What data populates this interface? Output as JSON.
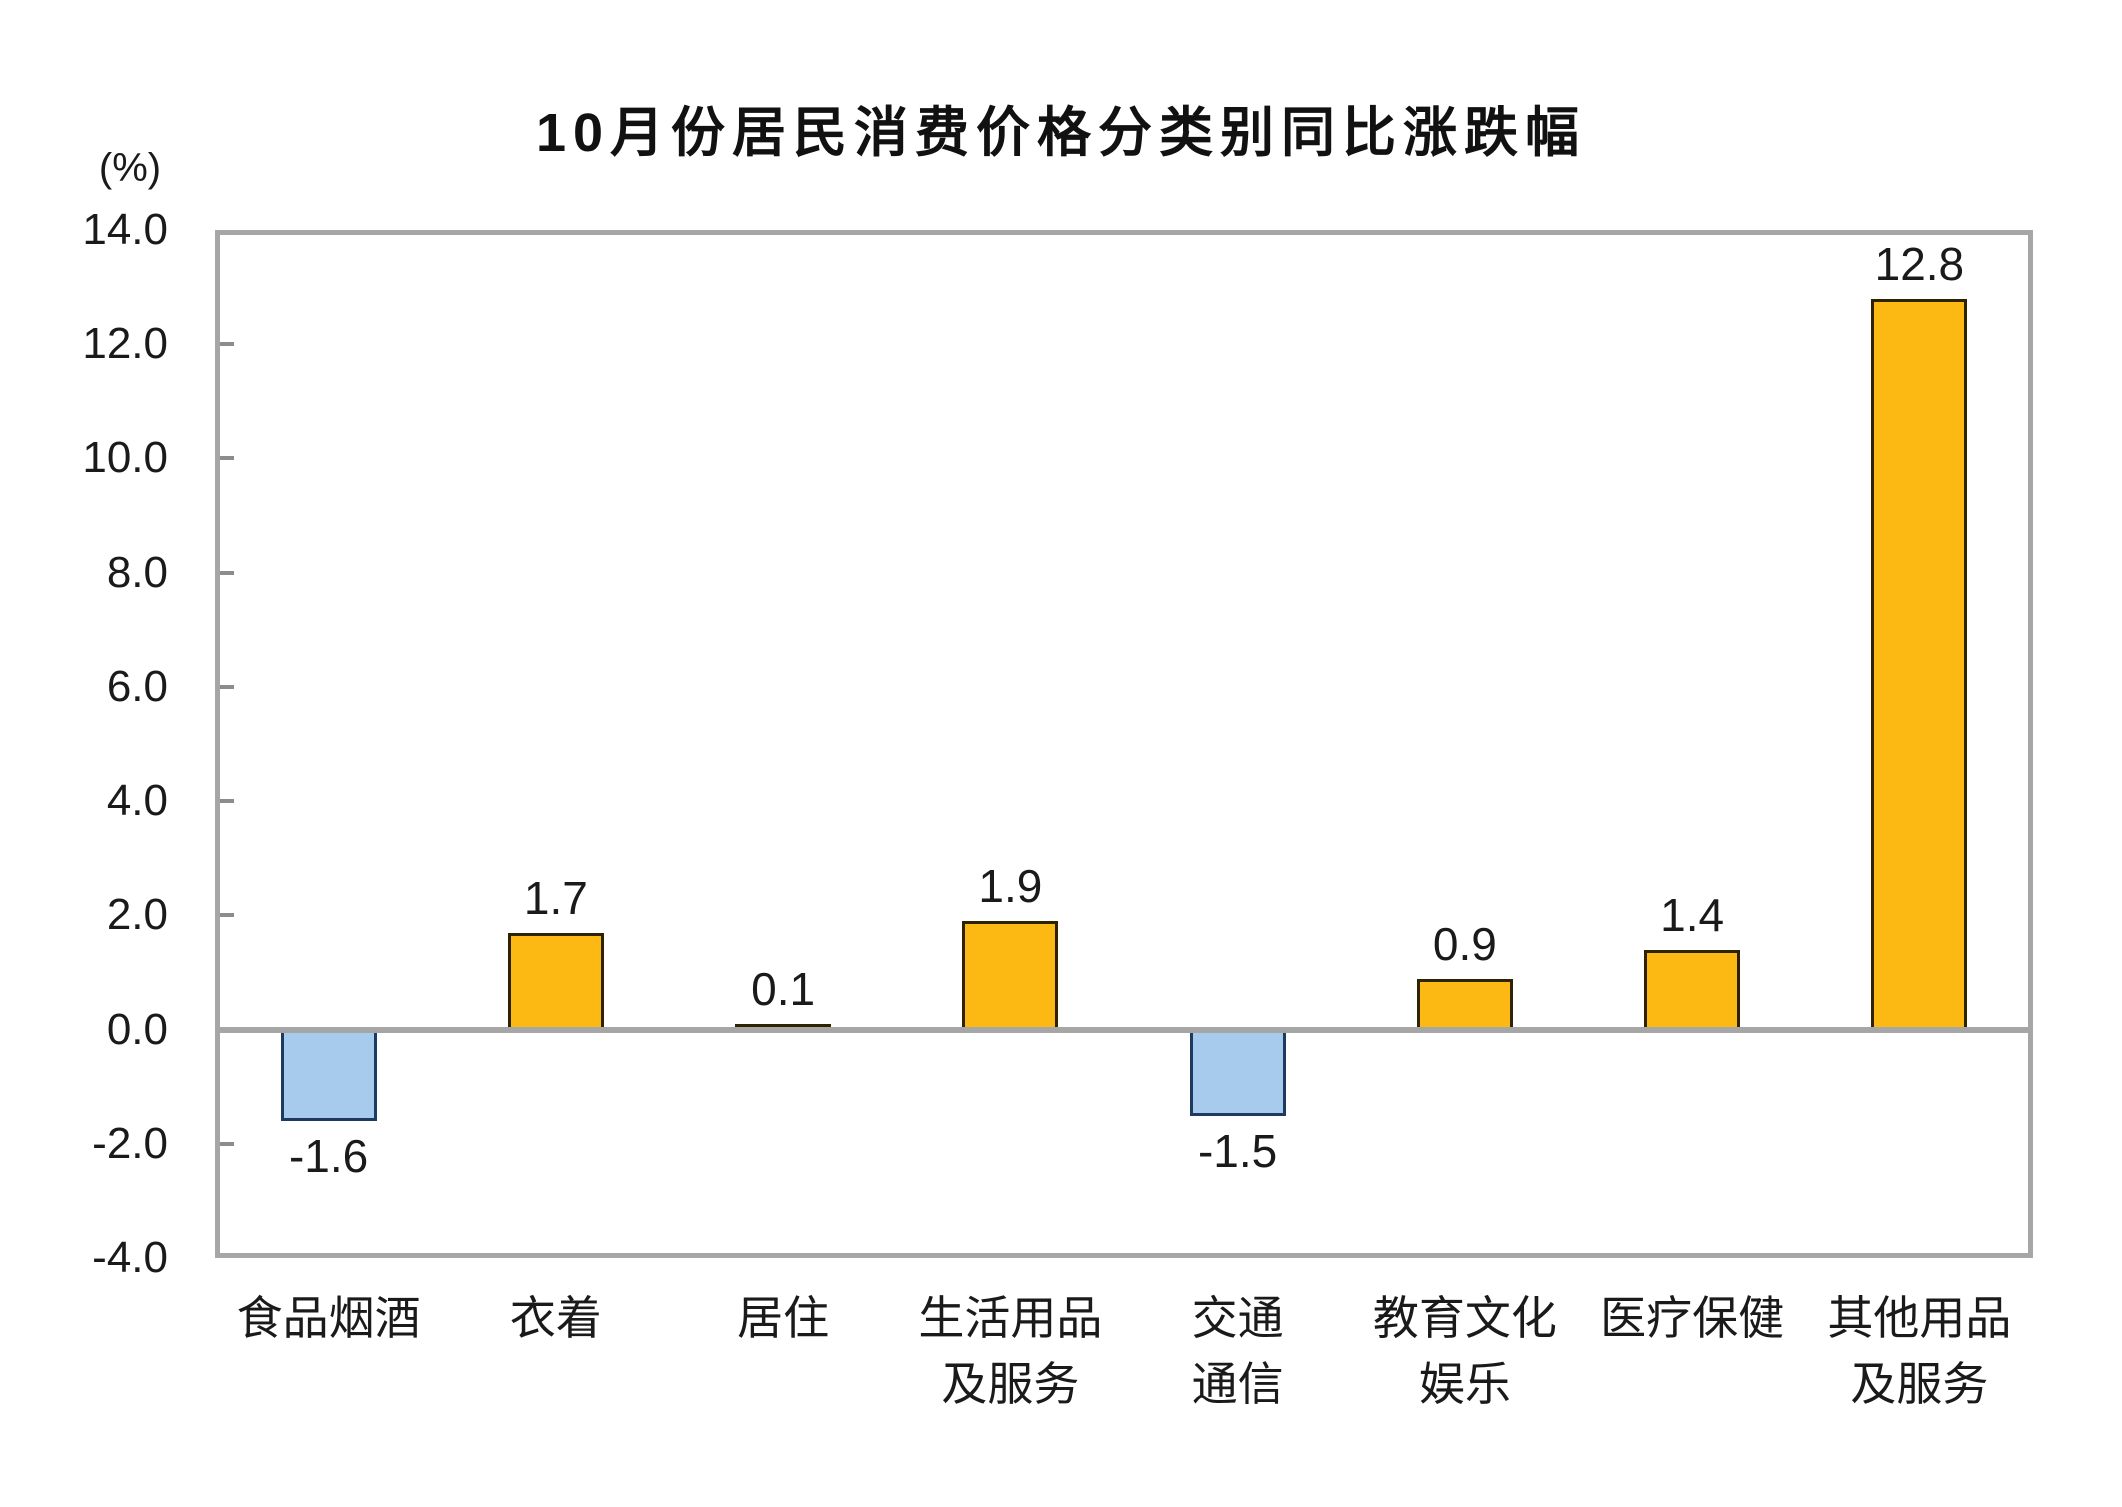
{
  "chart_data": {
    "type": "bar",
    "title": "10月份居民消费价格分类别同比涨跌幅",
    "unit": "(%)",
    "xlabel": "",
    "ylabel": "(%)",
    "categories": [
      "食品烟酒",
      "衣着",
      "居住",
      "生活用品及服务",
      "交通通信",
      "教育文化娱乐",
      "医疗保健",
      "其他用品及服务"
    ],
    "category_lines": [
      [
        "食品烟酒"
      ],
      [
        "衣着"
      ],
      [
        "居住"
      ],
      [
        "生活用品",
        "及服务"
      ],
      [
        "交通",
        "通信"
      ],
      [
        "教育文化",
        "娱乐"
      ],
      [
        "医疗保健"
      ],
      [
        "其他用品",
        "及服务"
      ]
    ],
    "values": [
      -1.6,
      1.7,
      0.1,
      1.9,
      -1.5,
      0.9,
      1.4,
      12.8
    ],
    "value_labels": [
      "-1.6",
      "1.7",
      "0.1",
      "1.9",
      "-1.5",
      "0.9",
      "1.4",
      "12.8"
    ],
    "ylim": [
      -4.0,
      14.0
    ],
    "ytick_step": 2.0,
    "yticks": [
      "14.0",
      "12.0",
      "10.0",
      "8.0",
      "6.0",
      "4.0",
      "2.0",
      "0.0",
      "-2.0",
      "-4.0"
    ],
    "ytick_values": [
      14,
      12,
      10,
      8,
      6,
      4,
      2,
      0,
      -2,
      -4
    ],
    "grid": false,
    "legend": false,
    "colors": {
      "positive_fill": "#FCB813",
      "positive_border": "#2E2300",
      "negative_fill": "#A6CBEC",
      "negative_border": "#1F3A60",
      "axis_frame": "#A6A6A6",
      "tick_mark": "#8C8C8C",
      "text": "#1A1A1A"
    }
  }
}
